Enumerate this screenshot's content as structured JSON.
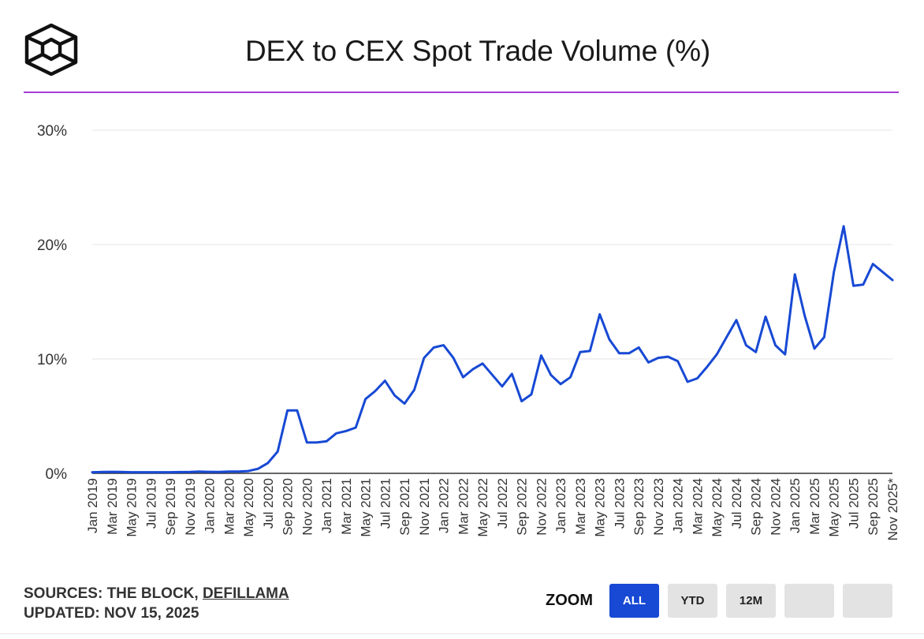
{
  "header": {
    "title": "DEX to CEX Spot Trade Volume (%)",
    "accent_color": "#a43fd6",
    "logo_icon": "the-block-cube-icon"
  },
  "footer": {
    "sources_prefix": "SOURCES: THE BLOCK, ",
    "sources_link": "DEFILLAMA",
    "updated": "UPDATED: NOV 15, 2025"
  },
  "zoom": {
    "label": "ZOOM",
    "buttons": [
      "ALL",
      "YTD",
      "12M",
      "",
      ""
    ],
    "active": "ALL",
    "active_color": "#1749d4"
  },
  "chart_data": {
    "type": "line",
    "title": "DEX to CEX Spot Trade Volume (%)",
    "xlabel": "",
    "ylabel": "",
    "ylim": [
      0,
      30
    ],
    "yticks": [
      0,
      10,
      20,
      30
    ],
    "ytick_labels": [
      "0%",
      "10%",
      "20%",
      "30%"
    ],
    "grid": true,
    "line_color": "#1749d4",
    "categories": [
      "Jan 2019",
      "Feb 2019",
      "Mar 2019",
      "Apr 2019",
      "May 2019",
      "Jun 2019",
      "Jul 2019",
      "Aug 2019",
      "Sep 2019",
      "Oct 2019",
      "Nov 2019",
      "Dec 2019",
      "Jan 2020",
      "Feb 2020",
      "Mar 2020",
      "Apr 2020",
      "May 2020",
      "Jun 2020",
      "Jul 2020",
      "Aug 2020",
      "Sep 2020",
      "Oct 2020",
      "Nov 2020",
      "Dec 2020",
      "Jan 2021",
      "Feb 2021",
      "Mar 2021",
      "Apr 2021",
      "May 2021",
      "Jun 2021",
      "Jul 2021",
      "Aug 2021",
      "Sep 2021",
      "Oct 2021",
      "Nov 2021",
      "Dec 2021",
      "Jan 2022",
      "Feb 2022",
      "Mar 2022",
      "Apr 2022",
      "May 2022",
      "Jun 2022",
      "Jul 2022",
      "Aug 2022",
      "Sep 2022",
      "Oct 2022",
      "Nov 2022",
      "Dec 2022",
      "Jan 2023",
      "Feb 2023",
      "Mar 2023",
      "Apr 2023",
      "May 2023",
      "Jun 2023",
      "Jul 2023",
      "Aug 2023",
      "Sep 2023",
      "Oct 2023",
      "Nov 2023",
      "Dec 2023",
      "Jan 2024",
      "Feb 2024",
      "Mar 2024",
      "Apr 2024",
      "May 2024",
      "Jun 2024",
      "Jul 2024",
      "Aug 2024",
      "Sep 2024",
      "Oct 2024",
      "Nov 2024",
      "Dec 2024",
      "Jan 2025",
      "Feb 2025",
      "Mar 2025",
      "Apr 2025",
      "May 2025",
      "Jun 2025",
      "Jul 2025",
      "Aug 2025",
      "Sep 2025",
      "Oct 2025",
      "Nov 2025*"
    ],
    "tick_every": 2,
    "series": [
      {
        "name": "DEX to CEX Spot Trade Volume (%)",
        "values": [
          0.1,
          0.12,
          0.13,
          0.12,
          0.1,
          0.1,
          0.1,
          0.1,
          0.1,
          0.11,
          0.12,
          0.15,
          0.13,
          0.12,
          0.15,
          0.15,
          0.2,
          0.4,
          0.9,
          1.9,
          5.5,
          5.5,
          2.7,
          2.7,
          2.8,
          3.5,
          3.7,
          4.0,
          6.5,
          7.2,
          8.1,
          6.8,
          6.1,
          7.3,
          10.1,
          11.0,
          11.2,
          10.1,
          8.4,
          9.1,
          9.6,
          8.6,
          7.6,
          8.7,
          6.3,
          6.9,
          10.3,
          8.6,
          7.8,
          8.4,
          10.6,
          10.7,
          13.9,
          11.7,
          10.5,
          10.5,
          11.0,
          9.7,
          10.1,
          10.2,
          9.8,
          8.0,
          8.3,
          9.3,
          10.4,
          11.9,
          13.4,
          11.2,
          10.6,
          13.7,
          11.2,
          10.4,
          17.4,
          13.8,
          10.9,
          11.9,
          17.6,
          21.6,
          16.4,
          16.5,
          18.3,
          17.6,
          16.9
        ]
      }
    ]
  }
}
